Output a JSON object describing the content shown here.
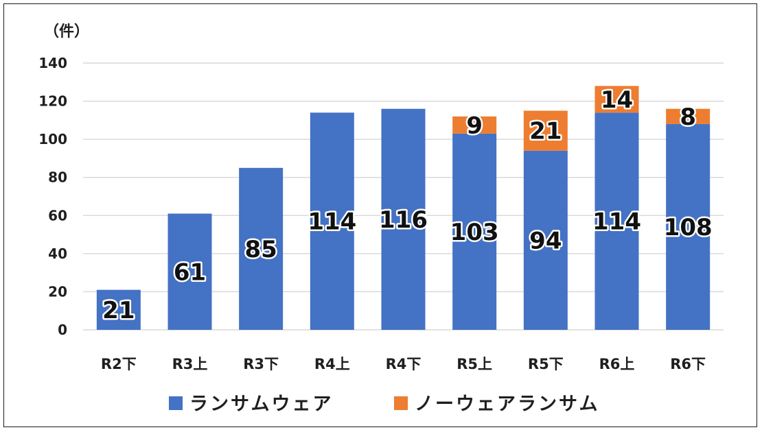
{
  "chart_data": {
    "type": "bar",
    "stacked": true,
    "unit_label": "（件）",
    "title": "",
    "xlabel": "",
    "ylabel": "",
    "ylim": [
      0,
      140
    ],
    "yticks": [
      0,
      20,
      40,
      60,
      80,
      100,
      120,
      140
    ],
    "grid": true,
    "legend_position": "bottom",
    "categories": [
      "R2下",
      "R3上",
      "R3下",
      "R4上",
      "R4下",
      "R5上",
      "R5下",
      "R6上",
      "R6下"
    ],
    "series": [
      {
        "name": "ランサムウェア",
        "color": "#4472C4",
        "values": [
          21,
          61,
          85,
          114,
          116,
          103,
          94,
          114,
          108
        ]
      },
      {
        "name": "ノーウェアランサム",
        "color": "#ED7D31",
        "values": [
          0,
          0,
          0,
          0,
          0,
          9,
          21,
          14,
          8
        ]
      }
    ]
  }
}
